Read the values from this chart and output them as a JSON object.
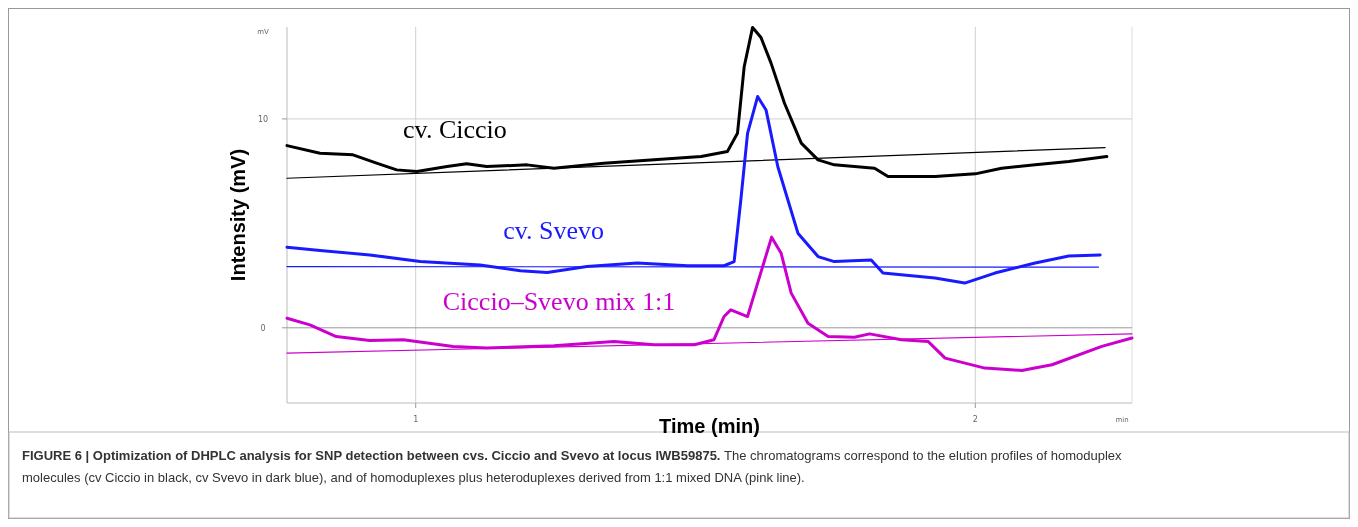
{
  "chart_data": {
    "type": "line",
    "title": "FIGURE 6 | Optimization of DHPLC analysis for SNP detection between cvs. Ciccio and Svevo at locus IWB59875.",
    "subtitle": "The chromatograms correspond to the elution profiles of homoduplex molecules (cv Ciccio in black, cv Svevo in dark blue), and of homoduplexes plus heteroduplexes derived from 1:1 mixed DNA (pink line).",
    "xlabel": "Time (min)",
    "ylabel": "Intensity (mV)",
    "annotations": [
      "mV",
      "min"
    ],
    "xlim": [
      0.77,
      2.28
    ],
    "ylim": [
      -3.6,
      14.4
    ],
    "xticks": [
      1,
      2
    ],
    "yticks": [
      0,
      10
    ],
    "grid": true,
    "line_style": "solid",
    "marker": "none",
    "series": [
      {
        "name": "cv. Ciccio",
        "color": "#000000",
        "x": [
          0.77,
          0.829,
          0.888,
          0.93,
          0.966,
          1.002,
          1.056,
          1.091,
          1.127,
          1.199,
          1.247,
          1.336,
          1.426,
          1.51,
          1.557,
          1.575,
          1.587,
          1.602,
          1.617,
          1.635,
          1.659,
          1.689,
          1.719,
          1.748,
          1.82,
          1.844,
          1.928,
          2.0,
          2.047,
          2.107,
          2.167,
          2.235
        ],
        "values": [
          8.72,
          8.36,
          8.28,
          7.88,
          7.56,
          7.48,
          7.72,
          7.85,
          7.72,
          7.8,
          7.64,
          7.88,
          8.04,
          8.2,
          8.44,
          9.31,
          12.5,
          14.38,
          13.9,
          12.67,
          10.75,
          8.84,
          8.04,
          7.8,
          7.64,
          7.24,
          7.24,
          7.37,
          7.64,
          7.8,
          7.96,
          8.2
        ]
      },
      {
        "color": "#000000",
        "x": [
          0.77,
          2.232
        ],
        "values": [
          7.16,
          8.63
        ]
      },
      {
        "name": "cv. Svevo",
        "color": "#1a1aff",
        "x": [
          0.77,
          0.829,
          0.918,
          1.008,
          1.115,
          1.187,
          1.235,
          1.306,
          1.396,
          1.486,
          1.551,
          1.569,
          1.581,
          1.593,
          1.611,
          1.626,
          1.647,
          1.683,
          1.719,
          1.748,
          1.814,
          1.835,
          1.928,
          1.981,
          2.035,
          2.107,
          2.167,
          2.223
        ],
        "values": [
          3.86,
          3.7,
          3.49,
          3.17,
          3.01,
          2.73,
          2.65,
          2.93,
          3.1,
          2.97,
          2.97,
          3.17,
          6.12,
          9.31,
          11.07,
          10.43,
          7.72,
          4.53,
          3.41,
          3.17,
          3.25,
          2.62,
          2.38,
          2.14,
          2.62,
          3.1,
          3.44,
          3.49
        ]
      },
      {
        "color": "#1a1aff",
        "x": [
          0.77,
          2.22
        ],
        "values": [
          2.93,
          2.9
        ]
      },
      {
        "name": "Ciccio–Svevo mix 1:1",
        "color": "#cc00cc",
        "x": [
          0.77,
          0.811,
          0.858,
          0.918,
          0.978,
          1.067,
          1.127,
          1.247,
          1.354,
          1.426,
          1.498,
          1.533,
          1.551,
          1.563,
          1.593,
          1.611,
          1.636,
          1.653,
          1.671,
          1.701,
          1.737,
          1.784,
          1.811,
          1.868,
          1.916,
          1.946,
          2.017,
          2.083,
          2.137,
          2.226,
          2.28
        ],
        "values": [
          0.46,
          0.14,
          -0.42,
          -0.61,
          -0.57,
          -0.89,
          -0.97,
          -0.86,
          -0.66,
          -0.81,
          -0.81,
          -0.57,
          0.54,
          0.86,
          0.54,
          2.14,
          4.34,
          3.57,
          1.66,
          0.22,
          -0.42,
          -0.45,
          -0.29,
          -0.57,
          -0.66,
          -1.45,
          -1.93,
          -2.04,
          -1.77,
          -0.89,
          -0.49
        ]
      },
      {
        "color": "#cc00cc",
        "x": [
          0.77,
          2.28
        ],
        "values": [
          -1.21,
          -0.29
        ]
      }
    ]
  }
}
